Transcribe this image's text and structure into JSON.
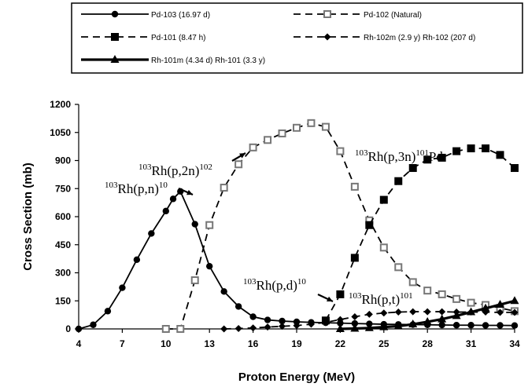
{
  "chart_data": {
    "type": "line",
    "title": "",
    "xlabel": "Proton Energy (MeV)",
    "ylabel": "Cross Section (mb)",
    "xlim": [
      4,
      34
    ],
    "ylim": [
      0,
      1200
    ],
    "xticks": [
      4,
      7,
      10,
      13,
      16,
      19,
      22,
      25,
      28,
      31,
      34
    ],
    "yticks": [
      0,
      150,
      300,
      450,
      600,
      750,
      900,
      1050,
      1200
    ],
    "grid": false,
    "legend_position": "top",
    "series": [
      {
        "name": "Pd-103 (16.97 d)",
        "color": "#000000",
        "dash": "solid",
        "marker": "circle",
        "x": [
          4,
          5,
          6,
          7,
          8,
          9,
          10,
          10.5,
          11,
          12,
          13,
          14,
          15,
          16,
          17,
          18,
          19,
          20,
          21,
          22,
          23,
          24,
          25,
          26,
          27,
          28,
          29,
          30,
          31,
          32,
          33,
          34
        ],
        "y": [
          0,
          22,
          95,
          220,
          370,
          510,
          630,
          695,
          735,
          560,
          335,
          200,
          120,
          65,
          48,
          42,
          38,
          35,
          33,
          31,
          29,
          27,
          25,
          24,
          23,
          22,
          21,
          20,
          20,
          19,
          19,
          18
        ]
      },
      {
        "name": "Pd-102 (Natural)",
        "color": "#000000",
        "dash": "dashed",
        "marker": "open-square",
        "x": [
          10,
          11,
          12,
          13,
          14,
          15,
          16,
          17,
          18,
          19,
          20,
          21,
          22,
          23,
          24,
          25,
          26,
          27,
          28,
          29,
          30,
          31,
          32,
          33,
          34
        ],
        "y": [
          0,
          0,
          260,
          555,
          755,
          880,
          970,
          1010,
          1045,
          1075,
          1100,
          1080,
          950,
          760,
          580,
          435,
          330,
          250,
          205,
          185,
          160,
          140,
          128,
          112,
          95
        ]
      },
      {
        "name": "Pd-101 (8.47 h)",
        "color": "#000000",
        "dash": "dashed",
        "marker": "square",
        "x": [
          21,
          22,
          23,
          24,
          25,
          26,
          27,
          28,
          29,
          30,
          31,
          32,
          33,
          34
        ],
        "y": [
          45,
          185,
          380,
          555,
          690,
          790,
          860,
          905,
          915,
          950,
          965,
          965,
          930,
          860
        ]
      },
      {
        "name": "Rh-102m (2.9 y) Rh-102 (207 d)",
        "color": "#000000",
        "dash": "dashed",
        "marker": "diamond",
        "x": [
          14,
          15,
          16,
          17,
          18,
          19,
          20,
          21,
          22,
          23,
          24,
          25,
          26,
          27,
          28,
          29,
          30,
          31,
          32,
          33,
          34
        ],
        "y": [
          0,
          2,
          5,
          10,
          14,
          18,
          25,
          35,
          50,
          65,
          78,
          85,
          90,
          92,
          92,
          92,
          90,
          90,
          90,
          88,
          88
        ]
      },
      {
        "name": "Rh-101m (4.34 d) Rh-101 (3.3 y)",
        "color": "#000000",
        "dash": "solid-thick",
        "marker": "triangle",
        "x": [
          22,
          23,
          24,
          25,
          26,
          27,
          28,
          29,
          30,
          31,
          32,
          33,
          34
        ],
        "y": [
          0,
          2,
          5,
          10,
          15,
          25,
          38,
          52,
          70,
          90,
          110,
          130,
          150
        ]
      }
    ],
    "annotations": [
      {
        "prefix": "103",
        "text": "Rh(p,n)",
        "suffix": "10"
      },
      {
        "prefix": "103",
        "text": "Rh(p,2n)",
        "suffix": "102"
      },
      {
        "prefix": "103",
        "text": "Rh(p,3n)",
        "suffix": "101",
        "tail": "Pd"
      },
      {
        "prefix": "103",
        "text": "Rh(p,d)",
        "suffix": "10"
      },
      {
        "prefix": "103",
        "text": "Rh(p,t)",
        "suffix": "101"
      }
    ]
  }
}
